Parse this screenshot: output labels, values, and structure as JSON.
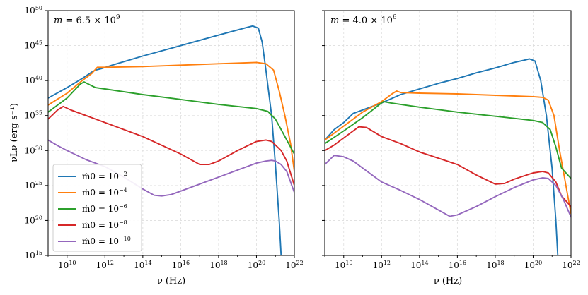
{
  "chart_data": [
    {
      "type": "line",
      "annotation": "m = 6.5 × 10^9",
      "annotation_parts": {
        "lhs": "m",
        "eq": " = 6.5 × 10",
        "exp": "9"
      },
      "xlabel": "ν (Hz)",
      "ylabel": "νLν (erg s⁻¹)",
      "x_scale": "log",
      "y_scale": "log",
      "xlim_log10": [
        9,
        22
      ],
      "ylim_log10": [
        15,
        50
      ],
      "xticks_log10": [
        10,
        12,
        14,
        16,
        18,
        20,
        22
      ],
      "yticks_log10": [
        15,
        20,
        25,
        30,
        35,
        40,
        45,
        50
      ],
      "grid": true,
      "legend": {
        "position": "lower-left"
      },
      "series": [
        {
          "name": "ṁ0 = 10^-2",
          "label_base": "ṁ0 = 10",
          "label_exp": "−2",
          "color": "#1f77b4",
          "log_nu": [
            9,
            10,
            10.8,
            11.3,
            11.5,
            11.8,
            12.5,
            14,
            16,
            18,
            19.5,
            19.8,
            20.1,
            20.3,
            20.5,
            20.8,
            21,
            21.2,
            21.3
          ],
          "log_nuLnu": [
            37.5,
            39.0,
            40.3,
            41.2,
            41.5,
            41.7,
            42.3,
            43.5,
            45.0,
            46.5,
            47.6,
            47.8,
            47.5,
            45.5,
            41.5,
            35.0,
            28.0,
            20.0,
            15.0
          ]
        },
        {
          "name": "ṁ0 = 10^-4",
          "label_base": "ṁ0 = 10",
          "label_exp": "−4",
          "color": "#ff7f0e",
          "log_nu": [
            9,
            10,
            10.8,
            11.3,
            11.6,
            12,
            14,
            16,
            18,
            20,
            20.5,
            20.9,
            21.2,
            21.5,
            21.8,
            22
          ],
          "log_nuLnu": [
            36.5,
            38.2,
            40.0,
            41.0,
            41.9,
            41.9,
            42.0,
            42.2,
            42.4,
            42.6,
            42.4,
            41.5,
            38.5,
            35.0,
            31.0,
            27.0
          ]
        },
        {
          "name": "ṁ0 = 10^-6",
          "label_base": "ṁ0 = 10",
          "label_exp": "−6",
          "color": "#2ca02c",
          "log_nu": [
            9,
            10,
            10.7,
            10.9,
            11.5,
            12,
            14,
            16,
            18,
            20,
            20.6,
            21,
            21.3,
            21.6,
            22
          ],
          "log_nuLnu": [
            35.5,
            37.5,
            39.5,
            39.8,
            39.0,
            38.8,
            38.0,
            37.3,
            36.6,
            36.0,
            35.6,
            34.5,
            33.0,
            31.5,
            29.5
          ]
        },
        {
          "name": "ṁ0 = 10^-8",
          "label_base": "ṁ0 = 10",
          "label_exp": "−8",
          "color": "#d62728",
          "log_nu": [
            9,
            9.5,
            9.8,
            10.2,
            11,
            12,
            14,
            16,
            17,
            17.5,
            18,
            19,
            20,
            20.5,
            20.8,
            21,
            21.3,
            21.6,
            22
          ],
          "log_nuLnu": [
            34.5,
            35.8,
            36.3,
            35.8,
            35.0,
            34.0,
            32.0,
            29.5,
            28.0,
            28.0,
            28.5,
            30.0,
            31.3,
            31.5,
            31.3,
            30.8,
            30.0,
            28.5,
            25.0
          ]
        },
        {
          "name": "ṁ0 = 10^-10",
          "label_base": "ṁ0 = 10",
          "label_exp": "−10",
          "color": "#9467bd",
          "log_nu": [
            9,
            9.5,
            10,
            11,
            12,
            13,
            14,
            14.6,
            15,
            15.5,
            16,
            17,
            18,
            19,
            20,
            20.5,
            20.8,
            21,
            21.3,
            21.6,
            22
          ],
          "log_nuLnu": [
            31.5,
            30.7,
            30.0,
            28.7,
            27.7,
            26.2,
            24.5,
            23.6,
            23.5,
            23.7,
            24.2,
            25.2,
            26.2,
            27.2,
            28.2,
            28.5,
            28.6,
            28.5,
            28.0,
            27.0,
            24.0
          ]
        }
      ]
    },
    {
      "type": "line",
      "annotation": "m = 4.0 × 10^6",
      "annotation_parts": {
        "lhs": "m",
        "eq": " = 4.0 × 10",
        "exp": "6"
      },
      "xlabel": "ν (Hz)",
      "x_scale": "log",
      "y_scale": "log",
      "xlim_log10": [
        9,
        22
      ],
      "ylim_log10": [
        15,
        50
      ],
      "xticks_log10": [
        10,
        12,
        14,
        16,
        18,
        20,
        22
      ],
      "yticks_log10": [
        15,
        20,
        25,
        30,
        35,
        40,
        45,
        50
      ],
      "grid": true,
      "series": [
        {
          "name": "ṁ0 = 10^-2",
          "color": "#1f77b4",
          "log_nu": [
            9,
            9.5,
            10,
            10.5,
            11,
            12,
            13,
            14,
            15,
            16,
            17,
            18,
            19,
            19.5,
            19.8,
            20.1,
            20.4,
            20.7,
            21,
            21.2,
            21.3
          ],
          "log_nuLnu": [
            31.5,
            33.0,
            34.0,
            35.3,
            35.8,
            36.8,
            38.0,
            38.8,
            39.6,
            40.3,
            41.1,
            41.8,
            42.6,
            42.9,
            43.1,
            42.8,
            40.0,
            35.0,
            27.5,
            20.0,
            15.0
          ]
        },
        {
          "name": "ṁ0 = 10^-4",
          "color": "#ff7f0e",
          "log_nu": [
            9,
            10,
            11,
            12,
            12.6,
            12.8,
            13,
            14,
            16,
            18,
            20,
            20.5,
            20.8,
            21.1,
            21.4,
            21.8,
            22
          ],
          "log_nuLnu": [
            31.5,
            33.5,
            35.5,
            37.0,
            38.2,
            38.5,
            38.3,
            38.2,
            38.1,
            37.9,
            37.7,
            37.6,
            37.2,
            35.0,
            30.0,
            24.0,
            21.0
          ]
        },
        {
          "name": "ṁ0 = 10^-6",
          "color": "#2ca02c",
          "log_nu": [
            9,
            10,
            11,
            11.9,
            12.1,
            12.5,
            14,
            16,
            18,
            20,
            20.5,
            20.9,
            21.2,
            21.5,
            22
          ],
          "log_nuLnu": [
            31.0,
            32.8,
            34.7,
            36.6,
            37.0,
            36.8,
            36.2,
            35.5,
            34.9,
            34.3,
            34.0,
            33.0,
            30.5,
            27.5,
            26.0
          ]
        },
        {
          "name": "ṁ0 = 10^-8",
          "color": "#d62728",
          "log_nu": [
            9,
            9.5,
            10,
            10.5,
            10.8,
            11.2,
            12,
            13,
            14,
            16,
            17,
            18,
            18.5,
            19,
            20,
            20.5,
            20.8,
            21.2,
            21.5,
            22
          ],
          "log_nuLnu": [
            30.0,
            30.8,
            31.8,
            32.8,
            33.4,
            33.3,
            32.0,
            31.0,
            29.8,
            28.0,
            26.5,
            25.2,
            25.3,
            25.9,
            26.8,
            27.0,
            26.8,
            25.5,
            23.5,
            22.0
          ]
        },
        {
          "name": "ṁ0 = 10^-10",
          "color": "#9467bd",
          "log_nu": [
            9,
            9.3,
            9.5,
            10,
            10.5,
            11,
            12,
            13,
            14,
            15,
            15.6,
            16,
            17,
            18,
            19,
            20,
            20.5,
            20.8,
            21.2,
            21.6,
            22
          ],
          "log_nuLnu": [
            28.0,
            28.8,
            29.3,
            29.1,
            28.5,
            27.5,
            25.5,
            24.3,
            23.0,
            21.5,
            20.6,
            20.8,
            22.0,
            23.4,
            24.7,
            25.8,
            26.1,
            26.0,
            25.0,
            23.0,
            20.5
          ]
        }
      ]
    }
  ]
}
